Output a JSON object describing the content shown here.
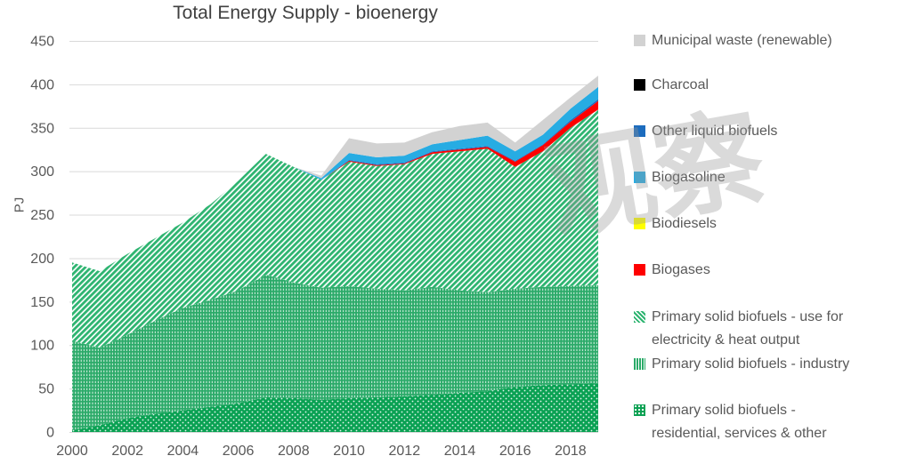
{
  "title": "Total Energy Supply - bioenergy",
  "watermark": {
    "text": "观察"
  },
  "chart_data": {
    "type": "area",
    "stacked": true,
    "title": "Total Energy Supply - bioenergy",
    "xlabel": "",
    "ylabel": "PJ",
    "ylim": [
      0,
      450
    ],
    "ytick_step": 50,
    "yticks": [
      0,
      50,
      100,
      150,
      200,
      250,
      300,
      350,
      400,
      450
    ],
    "xticks": [
      "2000",
      "2002",
      "2004",
      "2006",
      "2008",
      "2010",
      "2012",
      "2014",
      "2016",
      "2018"
    ],
    "grid": true,
    "legend_position": "right",
    "x": [
      2000,
      2001,
      2002,
      2003,
      2004,
      2005,
      2006,
      2007,
      2008,
      2009,
      2010,
      2011,
      2012,
      2013,
      2014,
      2015,
      2016,
      2017,
      2018,
      2019
    ],
    "series": [
      {
        "name": "Primary solid biofuels - residential, services & other",
        "fill": "dots",
        "color": "#0aa153",
        "values": [
          2,
          8,
          16,
          21,
          25,
          29,
          33,
          40,
          39,
          37,
          39,
          40,
          41,
          43,
          45,
          47,
          52,
          54,
          55,
          56
        ]
      },
      {
        "name": "Primary solid biofuels - industry",
        "fill": "vdash",
        "color": "#2aaa68",
        "values": [
          103,
          89,
          96,
          107,
          118,
          123,
          130,
          141,
          133,
          129,
          129,
          125,
          122,
          124,
          118,
          114,
          113,
          113,
          113,
          113
        ]
      },
      {
        "name": "Primary solid biofuels - use for electricity & heat output",
        "fill": "hatch",
        "color": "#2db470",
        "values": [
          90,
          88,
          93,
          95,
          98,
          110,
          126,
          139,
          133,
          124,
          143,
          141,
          145,
          153,
          160,
          165,
          140,
          156,
          182,
          202
        ]
      },
      {
        "name": "Biogases",
        "fill": "solid",
        "color": "#fe0000",
        "values": [
          0,
          0,
          0,
          0,
          0,
          0,
          0,
          0,
          0,
          0,
          1,
          1,
          1,
          2,
          2,
          2,
          6,
          7,
          7,
          10
        ]
      },
      {
        "name": "Biodiesels",
        "fill": "solid",
        "color": "#ffff00",
        "values": [
          0,
          0,
          0,
          0,
          0,
          0,
          0,
          0,
          0,
          0,
          0,
          0,
          0,
          0,
          0,
          0,
          0,
          0,
          0,
          0
        ]
      },
      {
        "name": "Other liquid biofuels",
        "fill": "solid",
        "color": "#1c6cbe",
        "values": [
          0,
          0,
          0,
          0,
          0,
          0,
          0,
          0,
          0,
          0,
          1,
          1,
          1,
          1,
          1,
          1,
          1,
          1,
          2,
          2
        ]
      },
      {
        "name": "Biogasoline",
        "fill": "solid",
        "color": "#27ace3",
        "values": [
          0,
          0,
          0,
          0,
          0,
          0,
          0,
          0,
          0,
          2,
          8,
          8,
          8,
          8,
          10,
          12,
          11,
          11,
          13,
          14
        ]
      },
      {
        "name": "Charcoal",
        "fill": "solid",
        "color": "#000000",
        "values": [
          0,
          0,
          0,
          0,
          0,
          0,
          0,
          0,
          0,
          0,
          0,
          0,
          0,
          0,
          0,
          0,
          0,
          0,
          0,
          0
        ]
      },
      {
        "name": "Municipal waste (renewable)",
        "fill": "solid",
        "color": "#d2d2d2",
        "values": [
          0,
          0,
          0,
          0,
          0,
          0,
          0,
          0,
          0,
          3,
          17,
          16,
          15,
          14,
          16,
          15,
          10,
          17,
          13,
          13
        ]
      }
    ]
  },
  "legend": {
    "items": [
      {
        "lines": [
          "Municipal waste (renewable)"
        ],
        "swatch": "solid",
        "color": "#d2d2d2"
      },
      {
        "lines": [
          "Charcoal"
        ],
        "swatch": "solid",
        "color": "#000000"
      },
      {
        "lines": [
          "Other liquid biofuels"
        ],
        "swatch": "solid",
        "color": "#1c6cbe"
      },
      {
        "lines": [
          "Biogasoline"
        ],
        "swatch": "solid",
        "color": "#27ace3"
      },
      {
        "lines": [
          "Biodiesels"
        ],
        "swatch": "solid",
        "color": "#ffff00"
      },
      {
        "lines": [
          "Biogases"
        ],
        "swatch": "solid",
        "color": "#fe0000"
      },
      {
        "lines": [
          "Primary solid biofuels - use for",
          "electricity & heat output"
        ],
        "swatch": "hatch",
        "color": "#2db470"
      },
      {
        "lines": [
          "Primary solid biofuels - industry"
        ],
        "swatch": "vdash",
        "color": "#2aaa68"
      },
      {
        "lines": [
          "Primary solid biofuels -",
          "residential, services & other"
        ],
        "swatch": "dots",
        "color": "#0aa153"
      }
    ]
  },
  "colors": {
    "grid": "#d9d9d9",
    "axis_text": "#595959",
    "title_text": "#404040"
  }
}
